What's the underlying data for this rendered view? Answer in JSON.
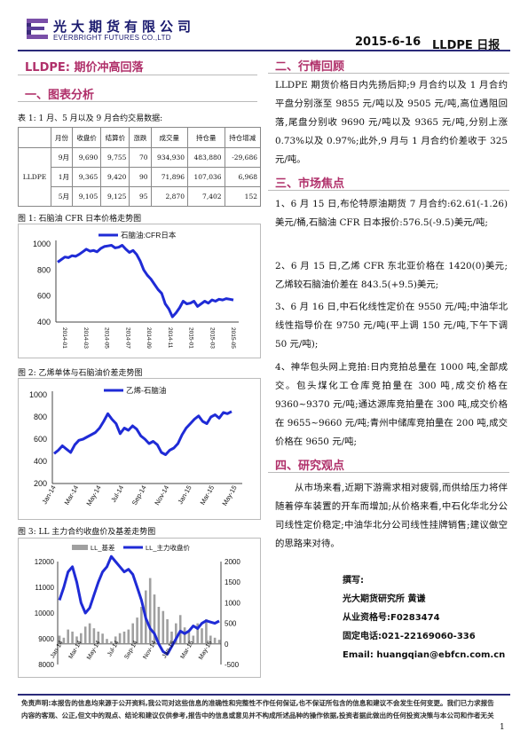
{
  "header": {
    "company_cn": "光大期货有限公司",
    "company_en": "EVERBRIGHT FUTURES CO.,LTD",
    "date": "2015-6-16",
    "report_name": "LLDPE 日报"
  },
  "title": "LLDPE:  期价冲高回落",
  "left": {
    "section1": "一、图表分析",
    "table_caption": "表 1: 1 月、5 月以及 9 月合约交易数据:",
    "table": {
      "headers": [
        "月份",
        "收盘价",
        "结算价",
        "涨跌",
        "成交量",
        "持仓量",
        "持仓增减"
      ],
      "group_label": "LLDPE",
      "rows": [
        [
          "9月",
          "9,690",
          "9,755",
          "70",
          "934,930",
          "483,880",
          "-29,686"
        ],
        [
          "1月",
          "9,365",
          "9,420",
          "90",
          "71,896",
          "107,036",
          "6,968"
        ],
        [
          "5月",
          "9,105",
          "9,125",
          "95",
          "2,870",
          "7,402",
          "152"
        ]
      ]
    },
    "fig1_caption": "图 1:  石脑油 CFR 日本价格走势图",
    "fig2_caption": "图 2:  乙烯单体与石脑油价差走势图",
    "fig3_caption": "图 3:  LL 主力合约收盘价及基差走势图"
  },
  "chart_data": [
    {
      "type": "line",
      "title": "",
      "series": [
        {
          "name": "石脑油:CFR日本",
          "values": [
            860,
            880,
            900,
            895,
            910,
            905,
            920,
            940,
            960,
            945,
            950,
            940,
            965,
            980,
            985,
            990,
            970,
            975,
            990,
            960,
            935,
            950,
            920,
            870,
            800,
            760,
            730,
            690,
            650,
            620,
            540,
            500,
            440,
            470,
            510,
            560,
            540,
            545,
            560,
            520,
            540,
            560,
            545,
            570,
            560,
            575,
            570,
            580,
            575,
            570
          ]
        }
      ],
      "ylim": [
        400,
        1000
      ],
      "yticks": [
        400,
        600,
        800,
        1000
      ],
      "xticks": [
        "2014-01",
        "2014-03",
        "2014-05",
        "2014-07",
        "2014-09",
        "2014-11",
        "2015-01",
        "2015-03",
        "2015-05"
      ],
      "color": "#1f2bd6"
    },
    {
      "type": "line",
      "title": "",
      "series": [
        {
          "name": "乙烯-石脑油",
          "values": [
            470,
            500,
            540,
            510,
            480,
            550,
            590,
            600,
            620,
            640,
            660,
            700,
            760,
            830,
            780,
            740,
            650,
            700,
            680,
            720,
            690,
            630,
            600,
            560,
            580,
            550,
            480,
            460,
            500,
            520,
            560,
            640,
            700,
            740,
            780,
            810,
            760,
            740,
            800,
            820,
            790,
            840,
            830,
            850
          ]
        }
      ],
      "ylim": [
        200,
        1000
      ],
      "yticks": [
        200,
        400,
        600,
        800,
        1000
      ],
      "xticks": [
        "Jan-14",
        "Mar-14",
        "May-14",
        "Jul-14",
        "Sep-14",
        "Nov-14",
        "Jan-15",
        "Mar-15",
        "May-15"
      ],
      "color": "#1f2bd6"
    },
    {
      "type": "line",
      "title": "",
      "series": [
        {
          "name": "LL_基差",
          "values": [
            200,
            150,
            350,
            300,
            180,
            260,
            420,
            500,
            380,
            300,
            250,
            120,
            60,
            180,
            260,
            300,
            350,
            500,
            640,
            900,
            1300,
            1600,
            1200,
            900,
            800,
            600,
            300,
            500,
            700,
            400,
            300,
            200,
            500,
            380,
            600,
            200,
            150,
            100
          ]
        },
        {
          "name": "LL_主力收盘价",
          "values": [
            10500,
            11000,
            11600,
            11800,
            11200,
            10400,
            10000,
            10200,
            10700,
            11200,
            11600,
            11800,
            12200,
            12000,
            11800,
            11600,
            11700,
            11500,
            11000,
            10500,
            9800,
            9400,
            9200,
            8800,
            8500,
            8400,
            8700,
            9000,
            9300,
            9200,
            9300,
            9500,
            9400,
            9600,
            9700,
            9650,
            9600,
            9690
          ]
        }
      ],
      "ylim_left": [
        8000,
        12000
      ],
      "ylim_right": [
        -500,
        2000
      ],
      "yticks_left": [
        8000,
        9000,
        10000,
        11000,
        12000
      ],
      "yticks_right": [
        -500,
        0,
        500,
        1000,
        1500,
        2000
      ],
      "xticks": [
        "Jan-14",
        "Mar-14",
        "May-14",
        "Jul-14",
        "Sep-14",
        "Nov-14",
        "Jan-15",
        "Mar-15",
        "May-15"
      ],
      "colors": [
        "#a0a0a0",
        "#1f2bd6"
      ]
    }
  ],
  "right": {
    "section2": "二、行情回顾",
    "review": "LLDPE 期货价格日内先扬后抑;9 月合约以及 1 月合约平盘分别涨至 9855 元/吨以及 9505 元/吨,高位遇阻回落,尾盘分别收 9690 元/吨以及 9365 元/吨,分别上涨 0.73%以及 0.97%;此外,9 月与 1 月合约价差收于 325 元/吨。",
    "section3": "三、市场焦点",
    "focus": [
      "1、6 月 15 日,布伦特原油期货 7 月合约:62.61(-1.26)美元/桶,石脑油 CFR 日本报价:576.5(-9.5)美元/吨;",
      "2、6 月 15 日,乙烯 CFR 东北亚价格在 1420(0)美元;乙烯较石脑油价差在 843.5(+9.5)美元;",
      "3、6 月 16 日,中石化线性定价在 9550 元/吨;中油华北线性指导价在 9750 元/吨(平上调 150 元/吨,下午下调 50 元/吨);",
      "4、神华包头网上竞拍:日内竞拍总量在 1000 吨,全部成交。包头煤化工仓库竞拍量在 300 吨,成交价格在 9360~9370 元/吨;通达源库竞拍量在 300 吨,成交价格在 9655~9660 元/吨;青州中储库竞拍量在 200 吨,成交价格在 9650 元/吨;"
    ],
    "section4": "四、研究观点",
    "view": "从市场来看,近期下游需求相对疲弱,而供给压力将伴随着停车装置的开车而增加;从价格来看,中石化华北分公司线性定价稳定;中油华北分公司线性挂牌销售;建议做空的思路来对待。",
    "author_label": "撰写:",
    "author_line": "光大期货研究所    黄谦",
    "cert": "从业资格号:F0283474",
    "phone": "固定电话:021-22169060-336",
    "email": "Email:  huangqian@ebfcn.com.cn"
  },
  "footer": {
    "disclaimer": "免责声明:本报告的信息均来源于公开资料,我公司对这些信息的准确性和完整性不作任何保证,也不保证所包含的信息和建议不会发生任何变更。我们已力求报告内容的客观、公正,但文中的观点、结论和建议仅供参考,报告中的信息或意见并不构成所述品种的操作依据,投资者据此做出的任何投资决策与本公司和作者无关",
    "page": "1"
  }
}
